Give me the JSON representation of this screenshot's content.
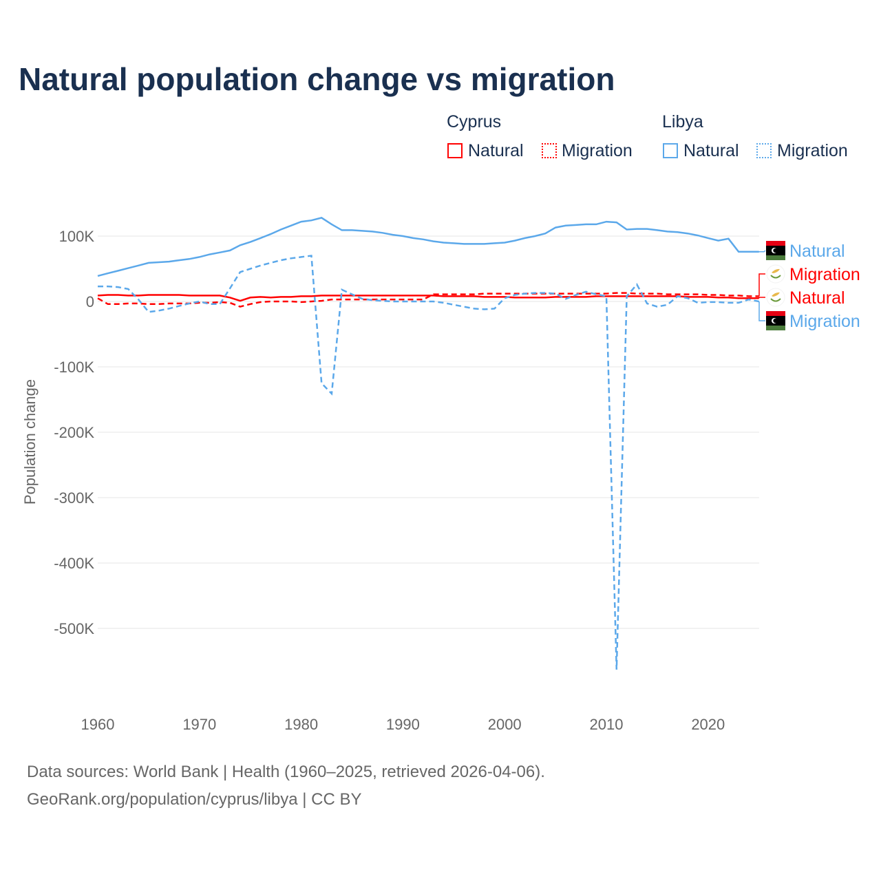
{
  "title": "Natural population change vs migration",
  "legend": {
    "groups": [
      {
        "name": "Cyprus",
        "items": [
          "Natural",
          "Migration"
        ]
      },
      {
        "name": "Libya",
        "items": [
          "Natural",
          "Migration"
        ]
      }
    ]
  },
  "end_labels": {
    "libya_natural": "Natural",
    "cyprus_migration": "Migration",
    "cyprus_natural": "Natural",
    "libya_migration": "Migration"
  },
  "footer": {
    "line1": "Data sources: World Bank | Health (1960–2025, retrieved 2026-04-06).",
    "line2": "GeoRank.org/population/cyprus/libya | CC BY"
  },
  "colors": {
    "cyprus": "#ff0000",
    "libya": "#5ba8ea"
  },
  "chart_data": {
    "type": "line",
    "title": "Natural population change vs migration",
    "xlabel": "",
    "ylabel": "Population change",
    "xlim": [
      1960,
      2025
    ],
    "ylim": [
      -600000,
      150000
    ],
    "x_ticks": [
      "1960",
      "1970",
      "1980",
      "1990",
      "2000",
      "2010",
      "2020"
    ],
    "y_ticks": [
      {
        "v": 100,
        "label": "100K"
      },
      {
        "v": 0,
        "label": "0"
      },
      {
        "v": -100,
        "label": "-100K"
      },
      {
        "v": -200,
        "label": "-200K"
      },
      {
        "v": -300,
        "label": "-300K"
      },
      {
        "v": -400,
        "label": "-400K"
      },
      {
        "v": -500,
        "label": "-500K"
      }
    ],
    "units": "thousands",
    "x_start": 1960,
    "series": [
      {
        "name": "Libya Natural",
        "color": "#5ba8ea",
        "dash": false,
        "values": [
          39,
          43,
          47,
          51,
          55,
          59,
          60,
          61,
          63,
          65,
          68,
          72,
          75,
          78,
          86,
          91,
          97,
          103,
          110,
          116,
          122,
          124,
          128,
          118,
          109,
          109,
          108,
          107,
          105,
          102,
          100,
          97,
          95,
          92,
          90,
          89,
          88,
          88,
          88,
          89,
          90,
          93,
          97,
          100,
          104,
          113,
          116,
          117,
          118,
          118,
          122,
          121,
          110,
          111,
          111,
          109,
          107,
          106,
          104,
          101,
          97,
          93,
          96,
          76,
          76,
          76
        ]
      },
      {
        "name": "Libya Migration",
        "color": "#5ba8ea",
        "dash": true,
        "values": [
          23,
          23,
          22,
          19,
          3,
          -16,
          -14,
          -11,
          -7,
          -3,
          0,
          -4,
          -4,
          20,
          45,
          50,
          55,
          59,
          63,
          66,
          68,
          70,
          -125,
          -141,
          18,
          11,
          4,
          2,
          1,
          0,
          0,
          0,
          0,
          0,
          -2,
          -5,
          -8,
          -11,
          -12,
          -11,
          5,
          10,
          12,
          13,
          13,
          12,
          4,
          10,
          15,
          11,
          8,
          -563,
          8,
          26,
          -3,
          -8,
          -5,
          8,
          5,
          -2,
          -1,
          -1,
          -2,
          -2,
          3,
          0
        ]
      },
      {
        "name": "Cyprus Natural",
        "color": "#ff0000",
        "dash": false,
        "values": [
          9,
          10,
          10,
          9,
          9,
          10,
          10,
          10,
          10,
          9,
          9,
          9,
          9,
          6,
          1,
          6,
          7,
          6,
          7,
          7,
          8,
          8,
          9,
          9,
          9,
          9,
          9,
          9,
          9,
          9,
          9,
          9,
          9,
          9,
          8,
          8,
          8,
          8,
          7,
          7,
          7,
          6,
          6,
          6,
          6,
          7,
          7,
          7,
          7,
          8,
          8,
          8,
          8,
          8,
          8,
          8,
          8,
          8,
          7,
          7,
          7,
          6,
          6,
          5,
          5,
          5
        ]
      },
      {
        "name": "Cyprus Migration",
        "color": "#ff0000",
        "dash": true,
        "values": [
          5,
          -4,
          -4,
          -3,
          -3,
          -4,
          -4,
          -3,
          -3,
          -3,
          -2,
          -2,
          -1,
          -2,
          -8,
          -4,
          -1,
          0,
          0,
          0,
          -1,
          0,
          1,
          3,
          3,
          3,
          3,
          3,
          3,
          3,
          3,
          3,
          3,
          11,
          11,
          11,
          11,
          11,
          12,
          12,
          12,
          12,
          12,
          12,
          12,
          12,
          12,
          12,
          12,
          12,
          12,
          13,
          13,
          12,
          12,
          12,
          11,
          11,
          11,
          11,
          10,
          10,
          9,
          9,
          8,
          8
        ]
      }
    ]
  }
}
